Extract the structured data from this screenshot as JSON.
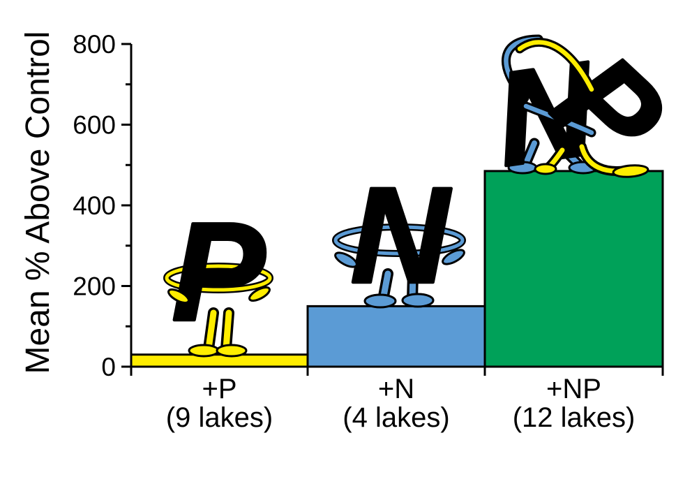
{
  "figure": {
    "background": "#ffffff"
  },
  "chart_data": {
    "type": "bar",
    "title": "",
    "ylabel": "Mean % Above Control",
    "xlabel": "",
    "ylim": [
      0,
      800
    ],
    "yticks_major": [
      0,
      200,
      400,
      600,
      800
    ],
    "yticks_minor": [
      100,
      300,
      500,
      700
    ],
    "grid": false,
    "legend": false,
    "categories": [
      "+P",
      "+N",
      "+NP"
    ],
    "sublabels": [
      "(9 lakes)",
      "(4 lakes)",
      "(12 lakes)"
    ],
    "values": [
      30,
      150,
      485
    ],
    "bar_colors": [
      "#FFED00",
      "#5B9BD5",
      "#00A159"
    ],
    "bar_outline_color": "#000000",
    "axis_color": "#000000",
    "characters": [
      {
        "letter": "P",
        "color": "#FFED00",
        "pose": "standing with hula-hoop arms, hands on hips",
        "on_bar": "+P"
      },
      {
        "letter": "N",
        "color": "#5B9BD5",
        "pose": "standing with hula-hoop arms, hands on hips",
        "on_bar": "+N"
      },
      {
        "letter": "N",
        "color": "#5B9BD5",
        "pose": "dancing, one arm raised, dipping partner",
        "on_bar": "+NP"
      },
      {
        "letter": "P",
        "color": "#FFED00",
        "pose": "dancing, leaning back, leg stretched out",
        "on_bar": "+NP"
      }
    ]
  }
}
